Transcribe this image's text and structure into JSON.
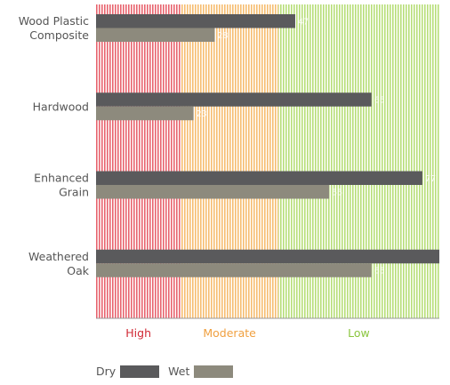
{
  "chart_data": {
    "type": "bar",
    "orientation": "horizontal",
    "categories": [
      [
        "Wood Plastic",
        "Composite"
      ],
      [
        "Hardwood"
      ],
      [
        "Enhanced",
        "Grain"
      ],
      [
        "Weathered",
        "Oak"
      ]
    ],
    "series": [
      {
        "name": "Dry",
        "values": [
          47,
          65,
          77,
          81
        ],
        "color": "#5a5a5c"
      },
      {
        "name": "Wet",
        "values": [
          28,
          23,
          55,
          65
        ],
        "color": "#8d8a7d"
      }
    ],
    "xlim": [
      0,
      81
    ],
    "zones": [
      {
        "label": "High",
        "from": 0,
        "to": 20,
        "color": "#e0303d",
        "text_color": "#d12a36"
      },
      {
        "label": "Moderate",
        "from": 20,
        "to": 43,
        "color": "#f2a640",
        "text_color": "#f0a040"
      },
      {
        "label": "Low",
        "from": 43,
        "to": 81,
        "color": "#9fd24a",
        "text_color": "#8bc63e"
      }
    ],
    "legend_placement": "bottom-left",
    "grid": false
  },
  "legend": {
    "dry": "Dry",
    "wet": "Wet"
  }
}
